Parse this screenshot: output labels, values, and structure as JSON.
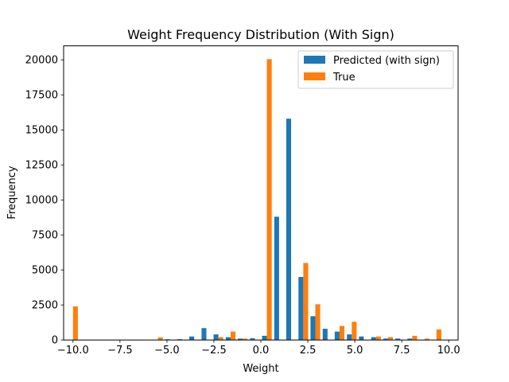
{
  "chart_data": {
    "type": "bar",
    "title": "Weight Frequency Distribution (With Sign)",
    "xlabel": "Weight",
    "ylabel": "Frequency",
    "xlim": [
      -10.5,
      10.5
    ],
    "ylim": [
      0,
      21000
    ],
    "xticks": [
      -10.0,
      -7.5,
      -5.0,
      -2.5,
      0.0,
      2.5,
      5.0,
      7.5,
      10.0
    ],
    "xtick_labels": [
      "−10.0",
      "−7.5",
      "−5.0",
      "−2.5",
      "0.0",
      "2.5",
      "5.0",
      "7.5",
      "10.0"
    ],
    "yticks": [
      0,
      2500,
      5000,
      7500,
      10000,
      12500,
      15000,
      17500,
      20000
    ],
    "ytick_labels": [
      "0",
      "2500",
      "5000",
      "7500",
      "10000",
      "12500",
      "15000",
      "17500",
      "20000"
    ],
    "legend_position": "top-right",
    "bin_centers": [
      -10.0,
      -9.35,
      -8.71,
      -8.06,
      -7.42,
      -6.77,
      -6.13,
      -5.48,
      -4.84,
      -4.19,
      -3.55,
      -2.9,
      -2.26,
      -1.61,
      -0.97,
      -0.32,
      0.32,
      0.97,
      1.61,
      2.26,
      2.9,
      3.55,
      4.19,
      4.84,
      5.48,
      6.13,
      6.77,
      7.42,
      8.06,
      8.71,
      9.35,
      10.0
    ],
    "series": [
      {
        "name": "Predicted (with sign)",
        "color": "#1f77b4",
        "values": [
          0,
          0,
          0,
          0,
          0,
          0,
          0,
          0,
          50,
          60,
          250,
          850,
          400,
          200,
          100,
          120,
          300,
          8800,
          15800,
          4500,
          1700,
          800,
          600,
          400,
          250,
          200,
          100,
          100,
          100,
          0,
          0,
          0
        ]
      },
      {
        "name": "True",
        "color": "#ff7f0e",
        "values": [
          2400,
          0,
          0,
          0,
          0,
          0,
          0,
          180,
          0,
          0,
          0,
          0,
          200,
          600,
          100,
          0,
          20050,
          0,
          0,
          5500,
          2550,
          0,
          1000,
          1300,
          0,
          250,
          200,
          0,
          300,
          100,
          750,
          0
        ]
      }
    ]
  }
}
